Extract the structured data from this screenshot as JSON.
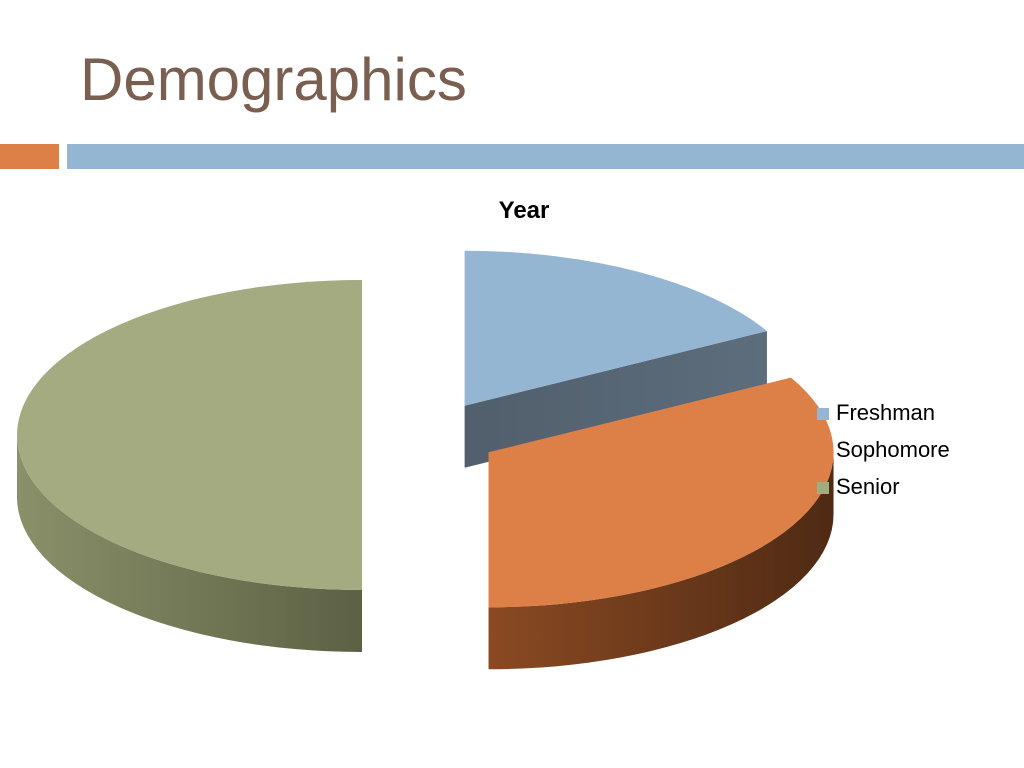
{
  "slide": {
    "title": "Demographics",
    "colors": {
      "title": "#7a5f50",
      "accent": "#dd8047",
      "header_bar": "#94b6d2"
    }
  },
  "chart_data": {
    "type": "pie",
    "style": "3d-exploded",
    "title": "Year",
    "legend_position": "right",
    "categories": [
      "Freshman",
      "Sophomore",
      "Senior"
    ],
    "values": [
      17,
      33,
      50
    ],
    "colors": {
      "Freshman": "#94b6d2",
      "Sophomore": "#dd8047",
      "Senior": "#a5ab81"
    }
  }
}
